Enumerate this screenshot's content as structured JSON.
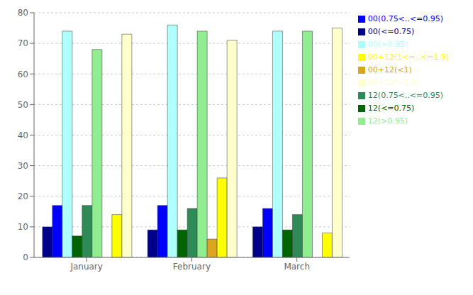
{
  "chart_data": {
    "type": "bar",
    "categories": [
      "January",
      "February",
      "March"
    ],
    "series": [
      {
        "name": "00(<=0.75)",
        "color": "#00008B",
        "values": [
          10,
          9,
          10
        ]
      },
      {
        "name": "00(0.75<..<=0.95)",
        "color": "#0000FF",
        "values": [
          17,
          17,
          16
        ]
      },
      {
        "name": "00(>0.95)",
        "color": "#B0FFFF",
        "values": [
          74,
          76,
          74
        ]
      },
      {
        "name": "12(<=0.75)",
        "color": "#006400",
        "values": [
          7,
          9,
          9
        ]
      },
      {
        "name": "12(0.75<..<=0.95)",
        "color": "#2E8B57",
        "values": [
          17,
          16,
          14
        ]
      },
      {
        "name": "12(>0.95)",
        "color": "#90EE90",
        "values": [
          68,
          74,
          74
        ]
      },
      {
        "name": "00+12(<1)",
        "color": "#DAA520",
        "values": [
          0,
          6,
          0
        ]
      },
      {
        "name": "00+12(1<=..<=1.9)",
        "color": "#FFFF00",
        "values": [
          14,
          26,
          8
        ]
      },
      {
        "name": "00+12(>1.9)",
        "color": "#FFFFCC",
        "values": [
          73,
          71,
          75
        ]
      }
    ],
    "ylim": [
      0,
      80
    ],
    "yticks": [
      0,
      10,
      20,
      30,
      40,
      50,
      60,
      70,
      80
    ],
    "grid": true,
    "legend": "right"
  }
}
